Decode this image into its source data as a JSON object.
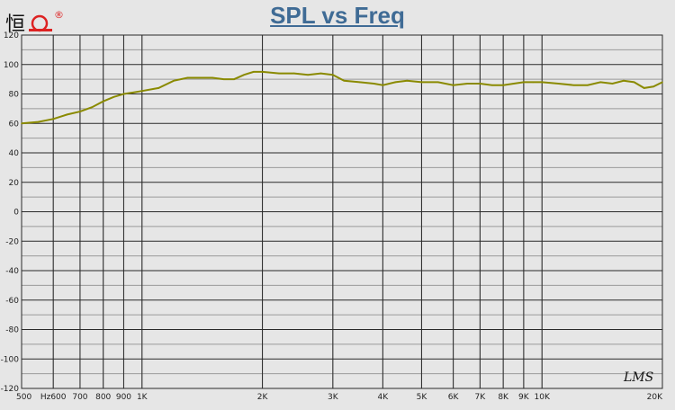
{
  "chart_data": {
    "type": "line",
    "title": "SPL vs Freq",
    "x_scale": "log",
    "xlim": [
      500,
      20000
    ],
    "ylim": [
      -120,
      120
    ],
    "y_ticks": [
      120,
      100,
      80,
      60,
      40,
      20,
      0,
      -20,
      -40,
      -60,
      -80,
      -100,
      -120
    ],
    "y_tick_labels": [
      "120",
      "100",
      "80",
      "60",
      "40",
      "20",
      "0",
      "-20",
      "-40",
      "-60",
      "-80",
      "-100",
      "-120"
    ],
    "x_tick_labels": [
      {
        "label": "500",
        "value": 500
      },
      {
        "label": "Hz600",
        "value": 600
      },
      {
        "label": "700",
        "value": 700
      },
      {
        "label": "800",
        "value": 800
      },
      {
        "label": "900",
        "value": 900
      },
      {
        "label": "1K",
        "value": 1000
      },
      {
        "label": "2K",
        "value": 2000
      },
      {
        "label": "3K",
        "value": 3000
      },
      {
        "label": "4K",
        "value": 4000
      },
      {
        "label": "5K",
        "value": 5000
      },
      {
        "label": "6K",
        "value": 6000
      },
      {
        "label": "7K",
        "value": 7000
      },
      {
        "label": "8K",
        "value": 8000
      },
      {
        "label": "9K",
        "value": 9000
      },
      {
        "label": "10K",
        "value": 10000
      },
      {
        "label": "20K",
        "value": 20000
      }
    ],
    "grid": true,
    "series": [
      {
        "color": "#8a8a00",
        "x": [
          500,
          550,
          600,
          650,
          700,
          750,
          800,
          850,
          900,
          950,
          1000,
          1100,
          1200,
          1300,
          1400,
          1500,
          1600,
          1700,
          1800,
          1900,
          2000,
          2200,
          2400,
          2600,
          2800,
          3000,
          3200,
          3500,
          3800,
          4000,
          4300,
          4600,
          5000,
          5500,
          6000,
          6500,
          7000,
          7500,
          8000,
          8500,
          9000,
          9500,
          10000,
          11000,
          12000,
          13000,
          14000,
          15000,
          16000,
          17000,
          18000,
          19000,
          20000
        ],
        "y": [
          60,
          61,
          63,
          66,
          68,
          71,
          75,
          78,
          80,
          81,
          82,
          84,
          89,
          91,
          91,
          91,
          90,
          90,
          93,
          95,
          95,
          94,
          94,
          93,
          94,
          93,
          89,
          88,
          87,
          86,
          88,
          89,
          88,
          88,
          86,
          87,
          87,
          86,
          86,
          87,
          88,
          88,
          88,
          87,
          86,
          86,
          88,
          87,
          89,
          88,
          84,
          85,
          88
        ]
      }
    ]
  },
  "watermark": "LMS",
  "logo_text": "恒",
  "logo_mark": "®",
  "colors": {
    "background": "#e6e6e6",
    "title": "#3f6b95",
    "grid_major": "#2a2a2a",
    "grid_minor": "#9a9a9a",
    "curve": "#8a8a00",
    "logo_red": "#d22"
  }
}
